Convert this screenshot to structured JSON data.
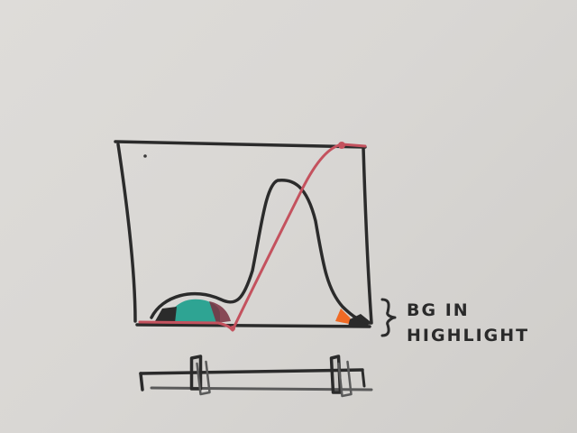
{
  "annotation": {
    "line1": "BG IN",
    "line2": "HIGHLIGHT"
  },
  "colors": {
    "paper": "#dbd9d6",
    "ink_black": "#2b2b2b",
    "ink_red": "#c4525e",
    "ink_teal": "#1c9f8c",
    "ink_orange": "#f06a24",
    "ink_maroon": "#7a3040"
  },
  "slider": {
    "low_handle": 0.25,
    "high_handle": 0.88
  }
}
